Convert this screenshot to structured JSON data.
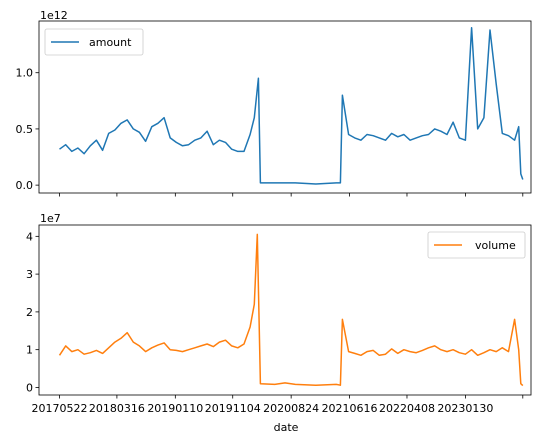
{
  "chart_data": [
    {
      "type": "line",
      "title": "",
      "ylabel": "",
      "y_offset_label": "1e12",
      "legend_position": "upper left",
      "ylim": [
        -0.07,
        1.46
      ],
      "yticks": [
        0.0,
        0.5,
        1.0
      ],
      "ytick_labels": [
        "0.0",
        "0.5",
        "1.0"
      ],
      "xlim": [
        -20,
        460
      ],
      "series": [
        {
          "name": "amount",
          "color": "#1f77b4",
          "points": [
            [
              0,
              0.32
            ],
            [
              6,
              0.36
            ],
            [
              12,
              0.3
            ],
            [
              18,
              0.33
            ],
            [
              24,
              0.28
            ],
            [
              30,
              0.35
            ],
            [
              36,
              0.4
            ],
            [
              42,
              0.31
            ],
            [
              48,
              0.46
            ],
            [
              54,
              0.49
            ],
            [
              60,
              0.55
            ],
            [
              66,
              0.58
            ],
            [
              72,
              0.5
            ],
            [
              78,
              0.47
            ],
            [
              84,
              0.39
            ],
            [
              90,
              0.52
            ],
            [
              96,
              0.55
            ],
            [
              102,
              0.6
            ],
            [
              108,
              0.42
            ],
            [
              114,
              0.38
            ],
            [
              120,
              0.35
            ],
            [
              126,
              0.36
            ],
            [
              132,
              0.4
            ],
            [
              138,
              0.42
            ],
            [
              144,
              0.48
            ],
            [
              150,
              0.36
            ],
            [
              156,
              0.4
            ],
            [
              162,
              0.38
            ],
            [
              168,
              0.32
            ],
            [
              174,
              0.3
            ],
            [
              180,
              0.3
            ],
            [
              186,
              0.45
            ],
            [
              190,
              0.6
            ],
            [
              194,
              0.95
            ],
            [
              196,
              0.02
            ],
            [
              210,
              0.02
            ],
            [
              230,
              0.02
            ],
            [
              250,
              0.01
            ],
            [
              270,
              0.02
            ],
            [
              274,
              0.02
            ],
            [
              276,
              0.8
            ],
            [
              282,
              0.45
            ],
            [
              288,
              0.42
            ],
            [
              294,
              0.4
            ],
            [
              300,
              0.45
            ],
            [
              306,
              0.44
            ],
            [
              312,
              0.42
            ],
            [
              318,
              0.4
            ],
            [
              324,
              0.46
            ],
            [
              330,
              0.43
            ],
            [
              336,
              0.45
            ],
            [
              342,
              0.4
            ],
            [
              348,
              0.42
            ],
            [
              354,
              0.44
            ],
            [
              360,
              0.45
            ],
            [
              366,
              0.5
            ],
            [
              372,
              0.48
            ],
            [
              378,
              0.45
            ],
            [
              384,
              0.56
            ],
            [
              390,
              0.42
            ],
            [
              396,
              0.4
            ],
            [
              402,
              1.4
            ],
            [
              408,
              0.5
            ],
            [
              414,
              0.6
            ],
            [
              420,
              1.38
            ],
            [
              426,
              0.9
            ],
            [
              432,
              0.46
            ],
            [
              438,
              0.44
            ],
            [
              444,
              0.4
            ],
            [
              448,
              0.52
            ],
            [
              450,
              0.1
            ],
            [
              452,
              0.05
            ]
          ]
        }
      ]
    },
    {
      "type": "line",
      "title": "",
      "xlabel": "date",
      "y_offset_label": "1e7",
      "legend_position": "upper right",
      "ylim": [
        -0.2,
        4.3
      ],
      "yticks": [
        0,
        1,
        2,
        3,
        4
      ],
      "ytick_labels": [
        "0",
        "1",
        "2",
        "3",
        "4"
      ],
      "xlim": [
        -20,
        460
      ],
      "xtick_positions": [
        0,
        56,
        113,
        169,
        226,
        283,
        339,
        396,
        452
      ],
      "xtick_labels": [
        "20170522",
        "20180316",
        "20190110",
        "20191104",
        "20200824",
        "20210616",
        "20220408",
        "20230130",
        ""
      ],
      "series": [
        {
          "name": "volume",
          "color": "#ff7f0e",
          "points": [
            [
              0,
              0.85
            ],
            [
              6,
              1.1
            ],
            [
              12,
              0.95
            ],
            [
              18,
              1.0
            ],
            [
              24,
              0.88
            ],
            [
              30,
              0.92
            ],
            [
              36,
              0.98
            ],
            [
              42,
              0.9
            ],
            [
              48,
              1.05
            ],
            [
              54,
              1.2
            ],
            [
              60,
              1.3
            ],
            [
              66,
              1.45
            ],
            [
              72,
              1.2
            ],
            [
              78,
              1.1
            ],
            [
              84,
              0.95
            ],
            [
              90,
              1.05
            ],
            [
              96,
              1.12
            ],
            [
              102,
              1.18
            ],
            [
              108,
              1.0
            ],
            [
              114,
              0.98
            ],
            [
              120,
              0.95
            ],
            [
              126,
              1.0
            ],
            [
              132,
              1.05
            ],
            [
              138,
              1.1
            ],
            [
              144,
              1.15
            ],
            [
              150,
              1.08
            ],
            [
              156,
              1.2
            ],
            [
              162,
              1.25
            ],
            [
              168,
              1.1
            ],
            [
              174,
              1.05
            ],
            [
              180,
              1.15
            ],
            [
              186,
              1.6
            ],
            [
              190,
              2.2
            ],
            [
              193,
              4.05
            ],
            [
              196,
              0.1
            ],
            [
              210,
              0.08
            ],
            [
              220,
              0.12
            ],
            [
              230,
              0.08
            ],
            [
              250,
              0.06
            ],
            [
              270,
              0.08
            ],
            [
              274,
              0.06
            ],
            [
              276,
              1.8
            ],
            [
              282,
              0.95
            ],
            [
              288,
              0.9
            ],
            [
              294,
              0.85
            ],
            [
              300,
              0.95
            ],
            [
              306,
              0.98
            ],
            [
              312,
              0.85
            ],
            [
              318,
              0.88
            ],
            [
              324,
              1.02
            ],
            [
              330,
              0.9
            ],
            [
              336,
              1.0
            ],
            [
              342,
              0.95
            ],
            [
              348,
              0.92
            ],
            [
              354,
              0.98
            ],
            [
              360,
              1.05
            ],
            [
              366,
              1.1
            ],
            [
              372,
              1.0
            ],
            [
              378,
              0.95
            ],
            [
              384,
              1.0
            ],
            [
              390,
              0.92
            ],
            [
              396,
              0.88
            ],
            [
              402,
              1.0
            ],
            [
              408,
              0.85
            ],
            [
              414,
              0.92
            ],
            [
              420,
              1.0
            ],
            [
              426,
              0.95
            ],
            [
              432,
              1.05
            ],
            [
              438,
              0.95
            ],
            [
              444,
              1.8
            ],
            [
              448,
              1.0
            ],
            [
              450,
              0.1
            ],
            [
              452,
              0.05
            ]
          ]
        }
      ]
    }
  ]
}
